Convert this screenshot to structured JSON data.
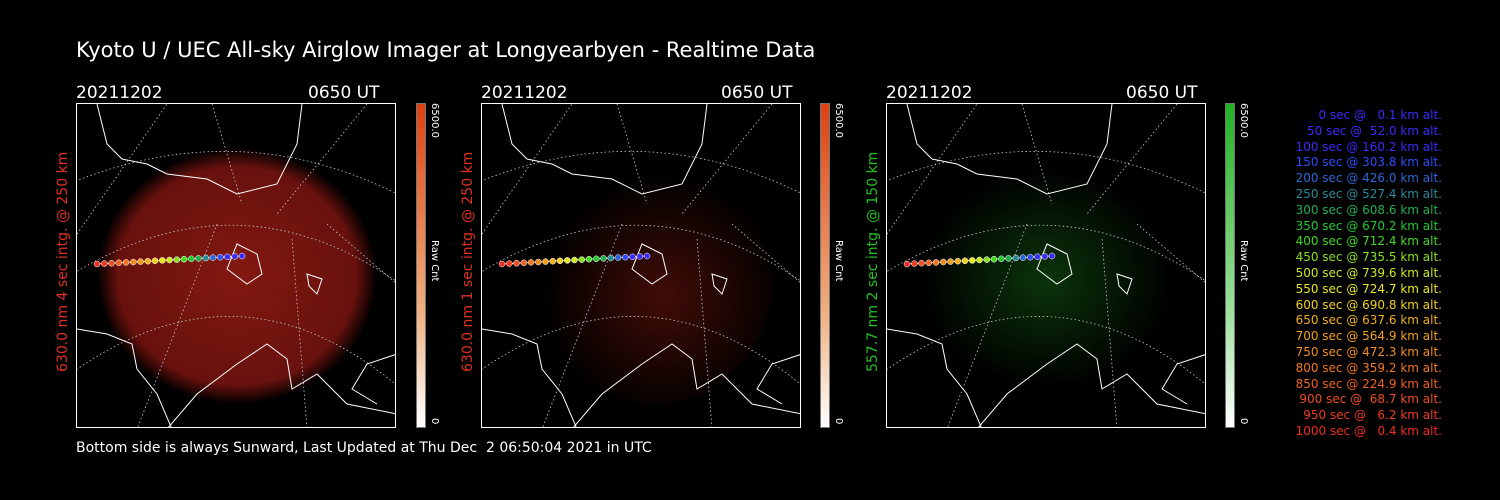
{
  "title": "Kyoto U / UEC All-sky Airglow Imager at Longyearbyen - Realtime Data",
  "footer": "Bottom side is always Sunward, Last Updated at Thu Dec  2 06:50:04 2021 in UTC",
  "panels": [
    {
      "date": "20211202",
      "time": "0650 UT",
      "ylabel": "630.0 nm 4 sec intg. @ 250 km",
      "label_color": "#e0301e",
      "cbar_max": "6500.0",
      "cbar_min": "0",
      "cbar_unit": "Raw Cnt",
      "glow": "#8a1a10",
      "cbar_color": "#e04010",
      "glow_level": 0.9
    },
    {
      "date": "20211202",
      "time": "0650 UT",
      "ylabel": "630.0 nm 1 sec intg. @ 250 km",
      "label_color": "#e0301e",
      "cbar_max": "6500.0",
      "cbar_min": "0",
      "cbar_unit": "Raw Cnt",
      "glow": "#4a0e08",
      "cbar_color": "#e04010",
      "glow_level": 0.35
    },
    {
      "date": "20211202",
      "time": "0650 UT",
      "ylabel": "557.7 nm 2 sec intg. @ 150 km",
      "label_color": "#22c222",
      "cbar_max": "6500.0",
      "cbar_min": "0",
      "cbar_unit": "Raw Cnt",
      "glow": "#0c3a0c",
      "cbar_color": "#22b022",
      "glow_level": 0.3
    }
  ],
  "legend": [
    {
      "text": "0 sec @   0.1 km alt.",
      "color": "#3a2bff"
    },
    {
      "text": "50 sec @  52.0 km alt.",
      "color": "#3a2bff"
    },
    {
      "text": "100 sec @ 160.2 km alt.",
      "color": "#3a2bff"
    },
    {
      "text": "150 sec @ 303.8 km alt.",
      "color": "#2d4cff"
    },
    {
      "text": "200 sec @ 426.0 km alt.",
      "color": "#2a66d8"
    },
    {
      "text": "250 sec @ 527.4 km alt.",
      "color": "#2a8a9a"
    },
    {
      "text": "300 sec @ 608.6 km alt.",
      "color": "#22b050"
    },
    {
      "text": "350 sec @ 670.2 km alt.",
      "color": "#22c830"
    },
    {
      "text": "400 sec @ 712.4 km alt.",
      "color": "#44d822"
    },
    {
      "text": "450 sec @ 735.5 km alt.",
      "color": "#88e022"
    },
    {
      "text": "500 sec @ 739.6 km alt.",
      "color": "#c8e820"
    },
    {
      "text": "550 sec @ 724.7 km alt.",
      "color": "#e8e820"
    },
    {
      "text": "600 sec @ 690.8 km alt.",
      "color": "#f0d020"
    },
    {
      "text": "650 sec @ 637.6 km alt.",
      "color": "#f0b020"
    },
    {
      "text": "700 sec @ 564.9 km alt.",
      "color": "#f0a020"
    },
    {
      "text": "750 sec @ 472.3 km alt.",
      "color": "#f08c20"
    },
    {
      "text": "800 sec @ 359.2 km alt.",
      "color": "#f07820"
    },
    {
      "text": "850 sec @ 224.9 km alt.",
      "color": "#f06020"
    },
    {
      "text": "900 sec @  68.7 km alt.",
      "color": "#f04c20"
    },
    {
      "text": "950 sec @   6.2 km alt.",
      "color": "#f03c20"
    },
    {
      "text": "1000 sec @   0.4 km alt.",
      "color": "#f02c20"
    }
  ]
}
